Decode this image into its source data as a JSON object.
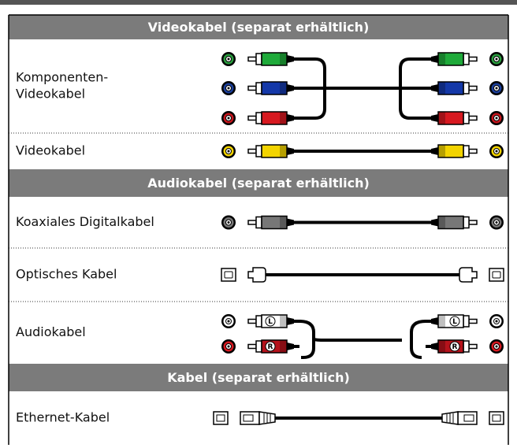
{
  "sections": [
    {
      "title": "Videokabel (separat erhältlich)",
      "rows": [
        {
          "label": [
            "Komponenten-",
            "Videokabel"
          ]
        },
        {
          "label": [
            "Videokabel"
          ]
        }
      ]
    },
    {
      "title": "Audiokabel (separat erhältlich)",
      "rows": [
        {
          "label": [
            "Koaxiales Digitalkabel"
          ]
        },
        {
          "label": [
            "Optisches Kabel"
          ]
        },
        {
          "label": [
            "Audiokabel"
          ],
          "plug_marks": [
            "L",
            "R"
          ]
        }
      ]
    },
    {
      "title": "Kabel (separat erhältlich)",
      "rows": [
        {
          "label": [
            "Ethernet-Kabel"
          ]
        }
      ]
    }
  ]
}
